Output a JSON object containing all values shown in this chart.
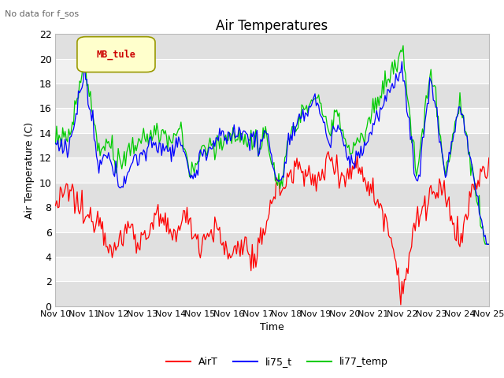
{
  "title": "Air Temperatures",
  "subtitle": "No data for f_sos",
  "xlabel": "Time",
  "ylabel": "Air Temperature (C)",
  "ylim": [
    0,
    22
  ],
  "yticks": [
    0,
    2,
    4,
    6,
    8,
    10,
    12,
    14,
    16,
    18,
    20,
    22
  ],
  "xtick_labels": [
    "Nov 10",
    "Nov 11",
    "Nov 12",
    "Nov 13",
    "Nov 14",
    "Nov 15",
    "Nov 16",
    "Nov 17",
    "Nov 18",
    "Nov 19",
    "Nov 20",
    "Nov 21",
    "Nov 22",
    "Nov 23",
    "Nov 24",
    "Nov 25"
  ],
  "legend_label": "MB_tule",
  "series_labels": [
    "AirT",
    "li75_t",
    "li77_temp"
  ],
  "series_colors": [
    "#ff0000",
    "#0000ff",
    "#00cc00"
  ],
  "fig_bg_color": "#ffffff",
  "plot_bg_color": "#f0f0f0",
  "grid_color": "#ffffff",
  "title_fontsize": 12,
  "axis_fontsize": 9,
  "tick_fontsize": 9,
  "legend_box_facecolor": "#ffffcc",
  "legend_box_edgecolor": "#999900",
  "legend_text_color": "#cc0000"
}
